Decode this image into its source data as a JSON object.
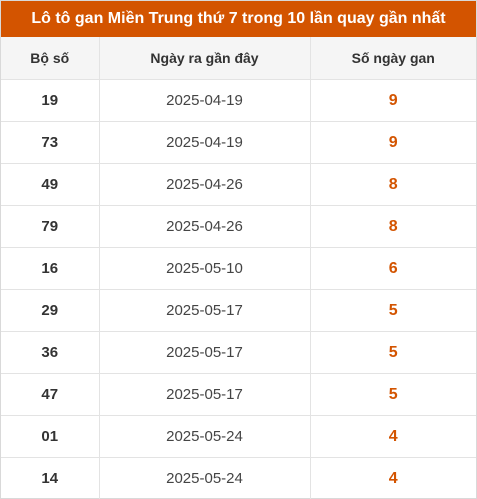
{
  "title": "Lô tô gan Miền Trung thứ 7 trong 10 lần quay gần nhất",
  "columns": [
    "Bộ số",
    "Ngày ra gần đây",
    "Số ngày gan"
  ],
  "accent_color": "#d35400",
  "rows": [
    {
      "number": "19",
      "date": "2025-04-19",
      "days": "9"
    },
    {
      "number": "73",
      "date": "2025-04-19",
      "days": "9"
    },
    {
      "number": "49",
      "date": "2025-04-26",
      "days": "8"
    },
    {
      "number": "79",
      "date": "2025-04-26",
      "days": "8"
    },
    {
      "number": "16",
      "date": "2025-05-10",
      "days": "6"
    },
    {
      "number": "29",
      "date": "2025-05-17",
      "days": "5"
    },
    {
      "number": "36",
      "date": "2025-05-17",
      "days": "5"
    },
    {
      "number": "47",
      "date": "2025-05-17",
      "days": "5"
    },
    {
      "number": "01",
      "date": "2025-05-24",
      "days": "4"
    },
    {
      "number": "14",
      "date": "2025-05-24",
      "days": "4"
    }
  ]
}
